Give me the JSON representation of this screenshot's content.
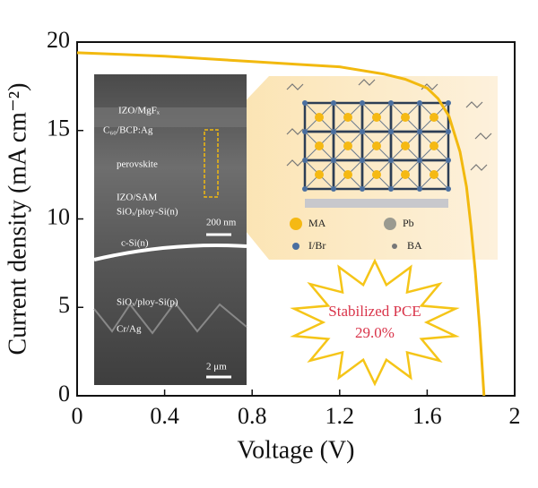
{
  "chart_data": {
    "type": "line",
    "xlabel": "Voltage (V)",
    "ylabel": "Current density (mA cm⁻²)",
    "x": [
      0,
      0.2,
      0.4,
      0.6,
      0.8,
      1.0,
      1.2,
      1.4,
      1.5,
      1.6,
      1.65,
      1.7,
      1.75,
      1.78,
      1.8,
      1.82,
      1.84,
      1.86
    ],
    "series": [
      {
        "color": "#f2b90f",
        "values": [
          19.4,
          19.3,
          19.2,
          19.05,
          18.9,
          18.75,
          18.6,
          18.2,
          17.9,
          17.4,
          16.8,
          15.8,
          13.8,
          11.8,
          9.6,
          7,
          3.8,
          0
        ]
      }
    ],
    "xlim": [
      0,
      2
    ],
    "xticks": [
      0,
      0.4,
      0.8,
      1.2,
      1.6,
      2
    ],
    "ylim": [
      0,
      20
    ],
    "yticks": [
      0,
      5,
      10,
      15,
      20
    ],
    "inset_labels": [
      "IZO/MgFₓ",
      "C₆₀/BCP:Ag",
      "perovskite",
      "IZO/SAM",
      "SiOₓ/ploy-Si(n)",
      "200 nm",
      "c-Si(n)",
      "SiOₓ/ploy-Si(p)",
      "Cr/Ag",
      "2 μm"
    ],
    "schematic_legend": [
      "MA",
      "Pb",
      "I/Br",
      "BA"
    ],
    "callout": [
      "Stabilized PCE",
      "29.0%"
    ]
  }
}
